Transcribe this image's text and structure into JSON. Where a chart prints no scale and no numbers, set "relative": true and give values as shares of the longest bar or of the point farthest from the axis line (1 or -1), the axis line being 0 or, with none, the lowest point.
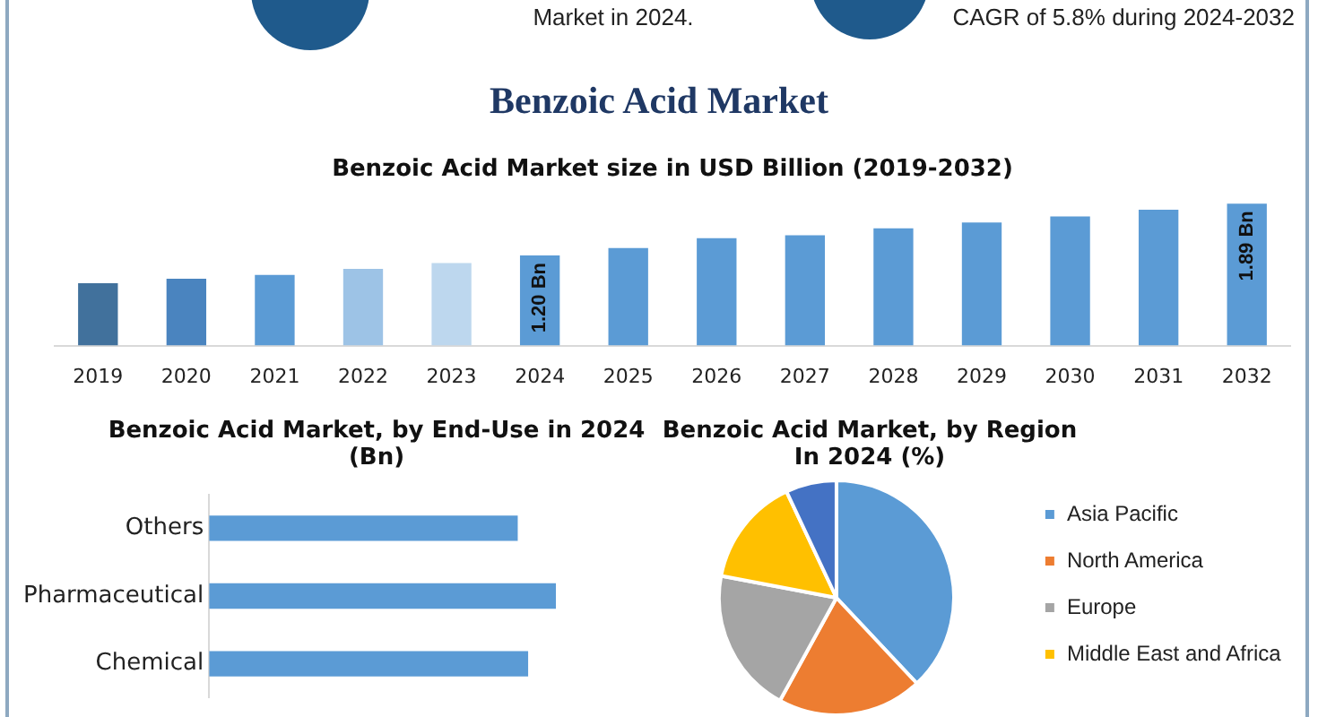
{
  "chart_data": [
    {
      "type": "other",
      "title": "Benzoic Acid Market",
      "annotations": [
        "Market in 2024.",
        "CAGR of 5.8% during 2024-2032"
      ]
    },
    {
      "type": "bar",
      "title": "Benzoic Acid Market size in USD Billion (2019-2032)",
      "categories": [
        "2019",
        "2020",
        "2021",
        "2022",
        "2023",
        "2024",
        "2025",
        "2026",
        "2027",
        "2028",
        "2029",
        "2030",
        "2031",
        "2032"
      ],
      "values": [
        0.83,
        0.89,
        0.94,
        1.02,
        1.1,
        1.2,
        1.3,
        1.43,
        1.47,
        1.56,
        1.64,
        1.72,
        1.81,
        1.89
      ],
      "colors": [
        "#41719c",
        "#4a84bf",
        "#5b9bd5",
        "#9dc3e6",
        "#bdd7ee",
        "#5b9bd5",
        "#5b9bd5",
        "#5b9bd5",
        "#5b9bd5",
        "#5b9bd5",
        "#5b9bd5",
        "#5b9bd5",
        "#5b9bd5",
        "#5b9bd5"
      ],
      "value_labels": [
        null,
        null,
        null,
        null,
        null,
        "1.20 Bn",
        null,
        null,
        null,
        null,
        null,
        null,
        null,
        "1.89 Bn"
      ]
    },
    {
      "type": "bar",
      "orientation": "horizontal",
      "relative": true,
      "title": "Benzoic Acid Market, by End-Use in 2024 (Bn)",
      "categories": [
        "Others",
        "Pharmaceutical",
        "Chemical"
      ],
      "values": [
        0.89,
        1,
        0.92
      ],
      "color": "#5b9bd5"
    },
    {
      "type": "pie",
      "title": "Benzoic Acid Market, by Region In 2024 (%)",
      "categories": [
        "Asia Pacific",
        "North America",
        "Europe",
        "Middle East and Africa",
        null
      ],
      "values": [
        38,
        20,
        20,
        15,
        7
      ],
      "colors": [
        "#5b9bd5",
        "#ed7d31",
        "#a5a5a5",
        "#ffc000",
        "#4472c4"
      ],
      "legend": "right"
    }
  ]
}
